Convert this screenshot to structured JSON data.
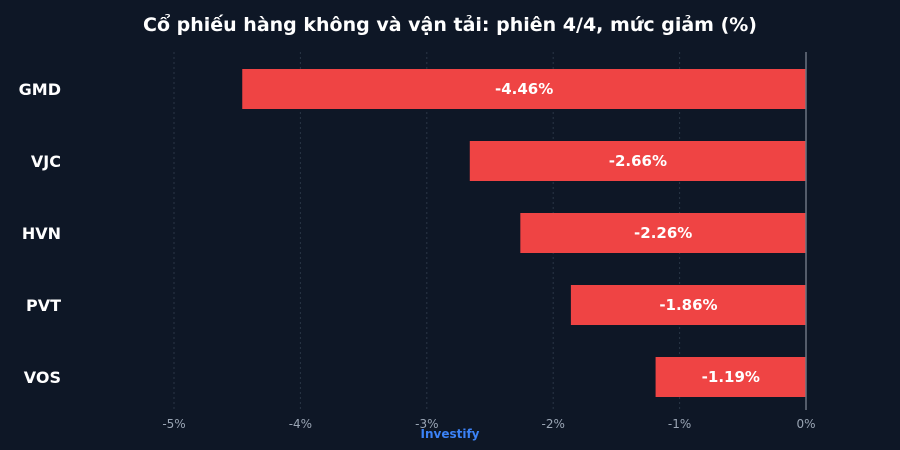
{
  "title": "Cổ phiếu hàng không và vận tải: phiên 4/4, mức giảm (%)",
  "watermark": "Investify",
  "chart_data": {
    "type": "bar",
    "orientation": "horizontal",
    "title": "Cổ phiếu hàng không và vận tải: phiên 4/4, mức giảm (%)",
    "categories": [
      "GMD",
      "VJC",
      "HVN",
      "PVT",
      "VOS"
    ],
    "values": [
      -4.46,
      -2.66,
      -2.26,
      -1.86,
      -1.19
    ],
    "data_labels": [
      "-4.46%",
      "-2.66%",
      "-2.26%",
      "-1.86%",
      "-1.19%"
    ],
    "xlim": [
      -5,
      0
    ],
    "x_ticks": [
      -5,
      -4,
      -3,
      -2,
      -1,
      0
    ],
    "x_tick_labels": [
      "-5%",
      "-4%",
      "-3%",
      "-2%",
      "-1%",
      "0%"
    ],
    "xlabel": "",
    "ylabel": "",
    "grid": true,
    "legend": false,
    "colors": {
      "background": "#0e1726",
      "bar": "#ef4444",
      "grid": "#2a3546",
      "zero_line": "#6b7480",
      "watermark": "#3b82f6"
    }
  }
}
